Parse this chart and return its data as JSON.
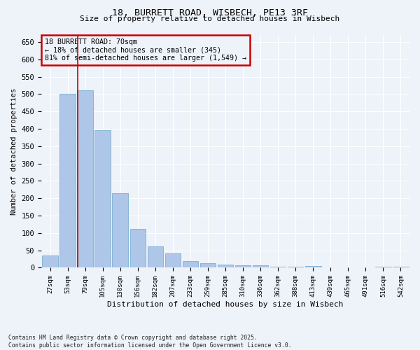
{
  "title1": "18, BURRETT ROAD, WISBECH, PE13 3RF",
  "title2": "Size of property relative to detached houses in Wisbech",
  "xlabel": "Distribution of detached houses by size in Wisbech",
  "ylabel": "Number of detached properties",
  "categories": [
    "27sqm",
    "53sqm",
    "79sqm",
    "105sqm",
    "130sqm",
    "156sqm",
    "182sqm",
    "207sqm",
    "233sqm",
    "259sqm",
    "285sqm",
    "310sqm",
    "336sqm",
    "362sqm",
    "388sqm",
    "413sqm",
    "439sqm",
    "465sqm",
    "491sqm",
    "516sqm",
    "542sqm"
  ],
  "values": [
    35,
    500,
    510,
    395,
    215,
    112,
    62,
    42,
    20,
    14,
    10,
    8,
    8,
    3,
    3,
    5,
    1,
    1,
    0,
    2,
    3
  ],
  "bar_color": "#aec6e8",
  "bar_edgecolor": "#7aafd4",
  "vline_color": "#cc0000",
  "vline_x": 1.575,
  "annotation_title": "18 BURRETT ROAD: 70sqm",
  "annotation_line1": "← 18% of detached houses are smaller (345)",
  "annotation_line2": "81% of semi-detached houses are larger (1,549) →",
  "annotation_box_edgecolor": "#cc0000",
  "ylim": [
    0,
    670
  ],
  "yticks": [
    0,
    50,
    100,
    150,
    200,
    250,
    300,
    350,
    400,
    450,
    500,
    550,
    600,
    650
  ],
  "footnote1": "Contains HM Land Registry data © Crown copyright and database right 2025.",
  "footnote2": "Contains public sector information licensed under the Open Government Licence v3.0.",
  "background_color": "#eef2f9",
  "grid_color": "#ffffff"
}
